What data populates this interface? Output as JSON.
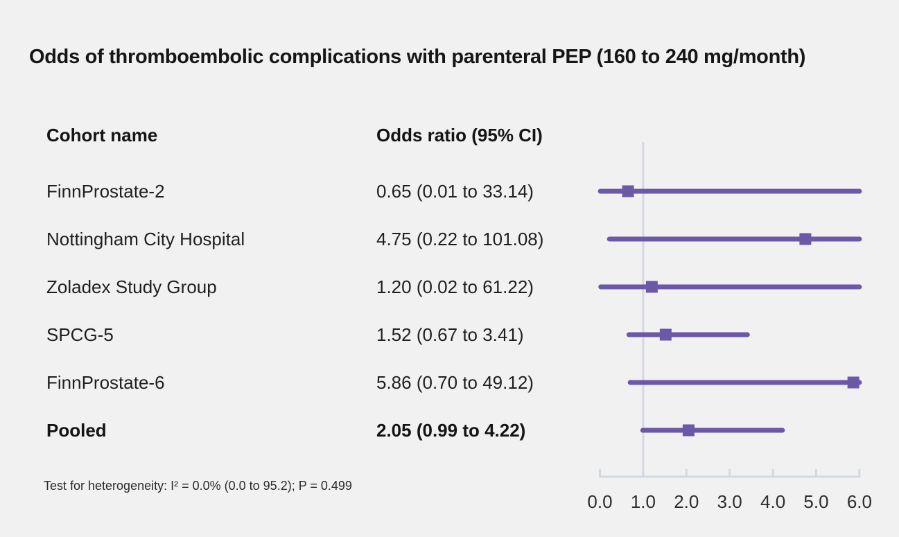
{
  "title": "Odds of thromboembolic complications with parenteral PEP (160 to 240 mg/month)",
  "table": {
    "col1_header": "Cohort name",
    "col2_header": "Odds ratio (95% CI)",
    "rows": [
      {
        "name": "FinnProstate-2",
        "estimate": "0.65 (0.01 to 33.14)",
        "pooled": false
      },
      {
        "name": "Nottingham City Hospital",
        "estimate": "4.75 (0.22 to 101.08)",
        "pooled": false
      },
      {
        "name": "Zoladex Study Group",
        "estimate": "1.20 (0.02 to 61.22)",
        "pooled": false
      },
      {
        "name": "SPCG-5",
        "estimate": "1.52 (0.67 to 3.41)",
        "pooled": false
      },
      {
        "name": "FinnProstate-6",
        "estimate": "5.86 (0.70 to 49.12)",
        "pooled": false
      },
      {
        "name": "Pooled",
        "estimate": "2.05 (0.99 to 4.22)",
        "pooled": true
      }
    ]
  },
  "footnote": "Test for heterogeneity: I² = 0.0% (0.0 to 95.2); P = 0.499",
  "chart_data": {
    "type": "scatter",
    "subtype": "forest-plot",
    "title": "Odds of thromboembolic complications with parenteral PEP (160 to 240 mg/month)",
    "xlabel": "",
    "ylabel": "",
    "xlim": [
      0.0,
      6.0
    ],
    "x_ticks": [
      0.0,
      1.0,
      2.0,
      3.0,
      4.0,
      5.0,
      6.0
    ],
    "x_tick_labels": [
      "0.0",
      "1.0",
      "2.0",
      "3.0",
      "4.0",
      "5.0",
      "6.0"
    ],
    "reference_line_x": 1.0,
    "ci_clipped_at": 6.0,
    "grid": false,
    "legend": false,
    "categories": [
      "FinnProstate-2",
      "Nottingham City Hospital",
      "Zoladex Study Group",
      "SPCG-5",
      "FinnProstate-6",
      "Pooled"
    ],
    "points": [
      {
        "odds_ratio": 0.65,
        "ci_low": 0.01,
        "ci_high": 33.14,
        "pooled": false
      },
      {
        "odds_ratio": 4.75,
        "ci_low": 0.22,
        "ci_high": 101.08,
        "pooled": false
      },
      {
        "odds_ratio": 1.2,
        "ci_low": 0.02,
        "ci_high": 61.22,
        "pooled": false
      },
      {
        "odds_ratio": 1.52,
        "ci_low": 0.67,
        "ci_high": 3.41,
        "pooled": false
      },
      {
        "odds_ratio": 5.86,
        "ci_low": 0.7,
        "ci_high": 49.12,
        "pooled": false
      },
      {
        "odds_ratio": 2.05,
        "ci_low": 0.99,
        "ci_high": 4.22,
        "pooled": true
      }
    ]
  },
  "colors": {
    "accent": "#6b59a7",
    "axis_line": "#d3d9e0",
    "background": "#f2f1f2",
    "text": "#1a1a1a",
    "tick_label": "#2d2d2d"
  }
}
